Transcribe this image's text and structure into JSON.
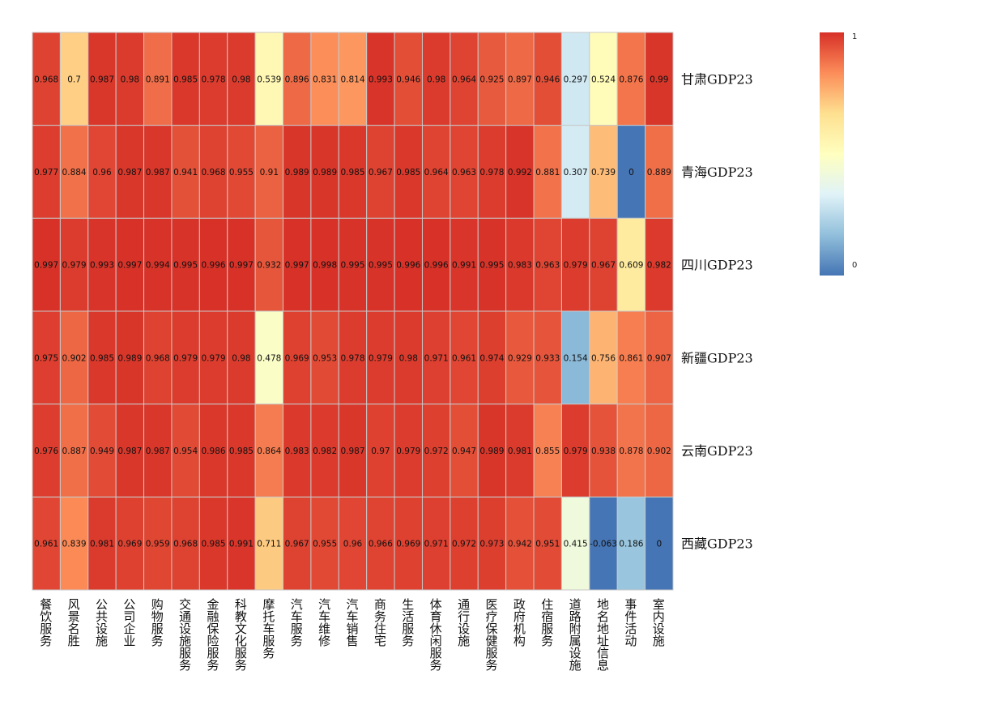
{
  "chart_data": {
    "type": "heatmap",
    "rows": [
      "甘肃GDP23",
      "青海GDP23",
      "四川GDP23",
      "新疆GDP23",
      "云南GDP23",
      "西藏GDP23"
    ],
    "columns": [
      "餐饮服务",
      "风景名胜",
      "公共设施",
      "公司企业",
      "购物服务",
      "交通设施服务",
      "金融保险服务",
      "科教文化服务",
      "摩托车服务",
      "汽车服务",
      "汽车维修",
      "汽车销售",
      "商务住宅",
      "生活服务",
      "体育休闲服务",
      "通行设施",
      "医疗保健服务",
      "政府机构",
      "住宿服务",
      "道路附属设施",
      "地名地址信息",
      "事件活动",
      "室内设施"
    ],
    "values": [
      [
        0.968,
        0.7,
        0.987,
        0.98,
        0.891,
        0.985,
        0.978,
        0.98,
        0.539,
        0.896,
        0.831,
        0.814,
        0.993,
        0.946,
        0.98,
        0.964,
        0.925,
        0.897,
        0.946,
        0.297,
        0.524,
        0.876,
        0.99
      ],
      [
        0.977,
        0.884,
        0.96,
        0.987,
        0.987,
        0.941,
        0.968,
        0.955,
        0.91,
        0.989,
        0.989,
        0.985,
        0.967,
        0.985,
        0.964,
        0.963,
        0.978,
        0.992,
        0.881,
        0.307,
        0.739,
        0,
        0.889
      ],
      [
        0.997,
        0.979,
        0.993,
        0.997,
        0.994,
        0.995,
        0.996,
        0.997,
        0.932,
        0.997,
        0.998,
        0.995,
        0.995,
        0.996,
        0.996,
        0.991,
        0.995,
        0.983,
        0.963,
        0.979,
        0.967,
        0.609,
        0.982
      ],
      [
        0.975,
        0.902,
        0.985,
        0.989,
        0.968,
        0.979,
        0.979,
        0.98,
        0.478,
        0.969,
        0.953,
        0.978,
        0.979,
        0.98,
        0.971,
        0.961,
        0.974,
        0.929,
        0.933,
        0.154,
        0.756,
        0.861,
        0.907
      ],
      [
        0.976,
        0.887,
        0.949,
        0.987,
        0.987,
        0.954,
        0.986,
        0.985,
        0.864,
        0.983,
        0.982,
        0.987,
        0.97,
        0.979,
        0.972,
        0.947,
        0.989,
        0.981,
        0.855,
        0.979,
        0.938,
        0.878,
        0.902
      ],
      [
        0.961,
        0.839,
        0.981,
        0.969,
        0.959,
        0.968,
        0.985,
        0.991,
        0.711,
        0.967,
        0.955,
        0.96,
        0.966,
        0.969,
        0.971,
        0.972,
        0.973,
        0.942,
        0.951,
        0.415,
        -0.063,
        0.186,
        0
      ]
    ],
    "color_scale": {
      "min": 0,
      "max": 1,
      "min_label": "0",
      "max_label": "1",
      "colors": [
        "#4575b4",
        "#91bfdb",
        "#e0f3f8",
        "#ffffbf",
        "#fee090",
        "#fc8d59",
        "#d73027"
      ]
    },
    "legend_placement": "top-right"
  }
}
